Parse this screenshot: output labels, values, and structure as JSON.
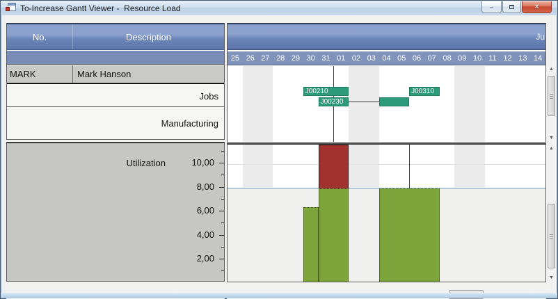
{
  "window": {
    "title": "To-Increase Gantt Viewer -  Resource Load"
  },
  "icons": {
    "minimize": "–",
    "maximize": "maximize-box",
    "close": "✕",
    "scroll_left": "◄",
    "scroll_right": "►",
    "scroll_up": "▲",
    "scroll_down": "▼"
  },
  "left_table": {
    "columns": [
      {
        "label": "No."
      },
      {
        "label": "Description"
      }
    ],
    "resource_row": {
      "no": "MARK",
      "description": "Mark Hanson"
    },
    "group_rows": [
      {
        "label": "Jobs"
      },
      {
        "label": "Manufacturing"
      }
    ]
  },
  "timeline": {
    "month_label_clipped": "Ju",
    "days": [
      "25",
      "26",
      "27",
      "28",
      "29",
      "30",
      "31",
      "01",
      "02",
      "03",
      "04",
      "05",
      "06",
      "07",
      "08",
      "09",
      "10",
      "11",
      "12",
      "13",
      "14"
    ],
    "weekend_day_indexes": [
      1,
      2,
      8,
      9,
      15,
      16
    ],
    "divider_day_index": 7
  },
  "gantt": {
    "bar_color": "#2d9b7a",
    "bars": [
      {
        "id": "J00210",
        "label": "J00210",
        "row": 0,
        "start_day": 5,
        "end_day": 8
      },
      {
        "id": "J00310",
        "label": "J00310",
        "row": 0,
        "start_day": 12,
        "end_day": 14
      },
      {
        "id": "J00230",
        "label": "J00230",
        "row": 1,
        "start_day": 6,
        "end_day": 8
      },
      {
        "id": "J00230b",
        "label": "",
        "row": 1,
        "start_day": 10,
        "end_day": 12
      }
    ],
    "connector": {
      "row": 1,
      "from_day": 8,
      "to_day": 10
    }
  },
  "utilization": {
    "title": "Utilization",
    "axis_labels": [
      {
        "label": "10,00",
        "value": 10
      },
      {
        "label": "8,00",
        "value": 8
      },
      {
        "label": "6,00",
        "value": 6
      },
      {
        "label": "4,00",
        "value": 4
      },
      {
        "label": "2,00",
        "value": 2
      }
    ],
    "minor_tick_values": [
      11,
      9,
      7,
      5,
      3,
      1
    ],
    "chart_data": {
      "type": "area",
      "title": "Utilization",
      "yticks": [
        2,
        4,
        6,
        8,
        10
      ],
      "ylim": [
        0,
        11.6
      ],
      "capacity": 8,
      "colors": {
        "normal": "#7ca43a",
        "overload": "#a1322d",
        "capacity_line": "#b3c7da"
      },
      "segments": [
        {
          "start_day_index": 5,
          "end_day_index": 6,
          "start_day": "30",
          "end_day": "30",
          "value": 6.4,
          "clipped_at_top": false
        },
        {
          "start_day_index": 6,
          "end_day_index": 8,
          "start_day": "31",
          "end_day": "01",
          "value": 11.6,
          "clipped_at_top": true
        },
        {
          "start_day_index": 10,
          "end_day_index": 14,
          "start_day": "04",
          "end_day": "07",
          "value": 8,
          "clipped_at_top": false
        }
      ],
      "overload_divider_day_index": 12
    }
  }
}
